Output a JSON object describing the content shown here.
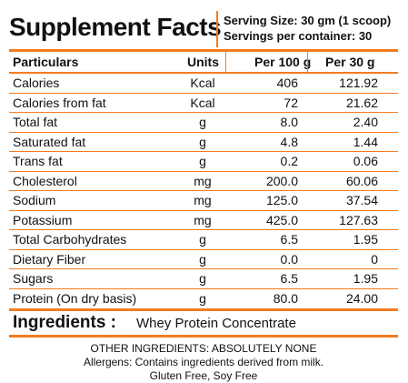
{
  "title": "Supplement Facts",
  "serving": {
    "size": "Serving Size: 30 gm (1 scoop)",
    "per_container": "Servings per container:  30"
  },
  "columns": {
    "particulars": "Particulars",
    "units": "Units",
    "per100": "Per 100 g",
    "per30": "Per 30 g"
  },
  "rows": [
    {
      "name": "Calories",
      "unit": "Kcal",
      "per100": "406",
      "per30": "121.92"
    },
    {
      "name": "Calories from fat",
      "unit": "Kcal",
      "per100": "72",
      "per30": "21.62"
    },
    {
      "name": "Total fat",
      "unit": "g",
      "per100": "8.0",
      "per30": "2.40"
    },
    {
      "name": "Saturated fat",
      "unit": "g",
      "per100": "4.8",
      "per30": "1.44"
    },
    {
      "name": "Trans fat",
      "unit": "g",
      "per100": "0.2",
      "per30": "0.06"
    },
    {
      "name": "Cholesterol",
      "unit": "mg",
      "per100": "200.0",
      "per30": "60.06"
    },
    {
      "name": "Sodium",
      "unit": "mg",
      "per100": "125.0",
      "per30": "37.54"
    },
    {
      "name": "Potassium",
      "unit": "mg",
      "per100": "425.0",
      "per30": "127.63"
    },
    {
      "name": "Total Carbohydrates",
      "unit": "g",
      "per100": "6.5",
      "per30": "1.95"
    },
    {
      "name": "Dietary Fiber",
      "unit": "g",
      "per100": "0.0",
      "per30": "0"
    },
    {
      "name": "Sugars",
      "unit": "g",
      "per100": "6.5",
      "per30": "1.95"
    },
    {
      "name": "Protein (On dry basis)",
      "unit": "g",
      "per100": "80.0",
      "per30": "24.00"
    }
  ],
  "ingredients": {
    "label": "Ingredients :",
    "value": "Whey Protein Concentrate"
  },
  "footer": {
    "other": "OTHER INGREDIENTS: ABSOLUTELY NONE",
    "allergens": "Allergens: Contains ingredients derived from milk.",
    "free": "Gluten Free, Soy Free"
  },
  "colors": {
    "accent": "#f47c20",
    "text": "#111111"
  }
}
